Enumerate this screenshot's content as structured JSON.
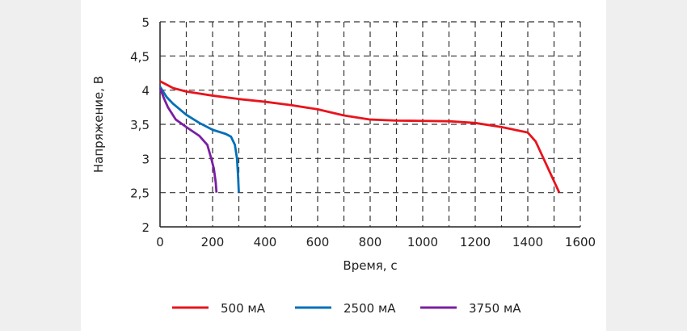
{
  "chart_data": {
    "type": "line",
    "xlabel": "Время, с",
    "ylabel": "Напряжение, В",
    "xlim": [
      0,
      1600
    ],
    "ylim": [
      2,
      5
    ],
    "xticks": [
      0,
      200,
      400,
      600,
      800,
      1000,
      1200,
      1400,
      1600
    ],
    "yticks": [
      2,
      2.5,
      3,
      3.5,
      4,
      4.5,
      5
    ],
    "ytick_labels": [
      "2",
      "2,5",
      "3",
      "3,5",
      "4",
      "4,5",
      "5"
    ],
    "grid": true,
    "legend": "bottom",
    "series": [
      {
        "name": "500 мА",
        "color": "#e8141c",
        "x": [
          0,
          50,
          100,
          200,
          300,
          400,
          500,
          600,
          700,
          800,
          900,
          1000,
          1100,
          1200,
          1300,
          1400,
          1430,
          1460,
          1490,
          1520
        ],
        "y": [
          4.13,
          4.03,
          3.98,
          3.92,
          3.87,
          3.83,
          3.78,
          3.72,
          3.63,
          3.57,
          3.555,
          3.55,
          3.545,
          3.52,
          3.46,
          3.38,
          3.25,
          3.0,
          2.75,
          2.5
        ]
      },
      {
        "name": "2500 мА",
        "color": "#0070b8",
        "x": [
          0,
          25,
          50,
          100,
          150,
          200,
          250,
          270,
          285,
          293,
          297,
          300
        ],
        "y": [
          4.05,
          3.9,
          3.8,
          3.64,
          3.52,
          3.42,
          3.36,
          3.32,
          3.2,
          3.0,
          2.75,
          2.5
        ]
      },
      {
        "name": "3750 мА",
        "color": "#7a1fa2",
        "x": [
          0,
          15,
          30,
          60,
          100,
          150,
          180,
          195,
          205,
          212,
          215
        ],
        "y": [
          4.03,
          3.88,
          3.75,
          3.57,
          3.46,
          3.33,
          3.2,
          3.0,
          2.85,
          2.65,
          2.5
        ]
      }
    ]
  }
}
